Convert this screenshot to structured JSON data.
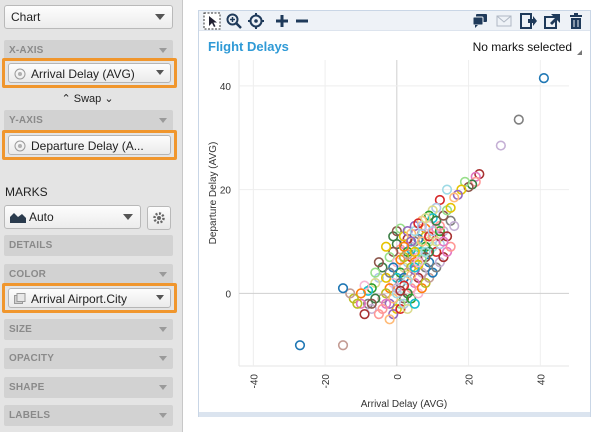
{
  "panel": {
    "chart_type": "Chart",
    "x_axis": {
      "label": "X-AXIS",
      "field": "Arrival Delay (AVG)"
    },
    "swap_label": "Swap",
    "y_axis": {
      "label": "Y-AXIS",
      "field": "Departure Delay (A..."
    },
    "marks_label": "MARKS",
    "marks_type": "Auto",
    "details_label": "DETAILS",
    "color": {
      "label": "COLOR",
      "field": "Arrival Airport.City"
    },
    "size_label": "SIZE",
    "opacity_label": "OPACITY",
    "shape_label": "SHAPE",
    "labels_label": "LABELS"
  },
  "viz": {
    "title": "Flight Delays",
    "marks_status": "No marks selected",
    "toolbar_icons": [
      "pointer-icon",
      "zoom-icon",
      "pan-icon",
      "add-icon",
      "remove-icon",
      "comment-icon",
      "email-icon",
      "export-icon",
      "share-icon",
      "delete-icon"
    ]
  },
  "colors": {
    "accent": "#2f9ad6",
    "highlight": "#f0962d",
    "palette": [
      "#1f77b4",
      "#ff7f0e",
      "#2ca02c",
      "#d62728",
      "#9467bd",
      "#8c564b",
      "#e377c2",
      "#7f7f7f",
      "#bcbd22",
      "#17becf",
      "#aec7e8",
      "#ffbb78",
      "#98df8a",
      "#ff9896",
      "#c5b0d5",
      "#c49c94",
      "#f7b6d2",
      "#dbdb8d",
      "#9edae5",
      "#e5c300",
      "#3a7d44",
      "#a83232"
    ]
  },
  "chart_data": {
    "type": "scatter",
    "title": "Flight Delays",
    "xlabel": "Arrival Delay (AVG)",
    "ylabel": "Departure Delay (AVG)",
    "xlim": [
      -44,
      48
    ],
    "ylim": [
      -14,
      45
    ],
    "x_ticks": [
      "-40",
      "-20",
      "0",
      "20",
      "40"
    ],
    "y_ticks": [
      "0",
      "20",
      "40"
    ],
    "x_tick_values": [
      -40,
      -20,
      0,
      20,
      40
    ],
    "y_tick_values": [
      0,
      20,
      40
    ],
    "grid": true,
    "points": [
      [
        41,
        41.5
      ],
      [
        34,
        33.5
      ],
      [
        29,
        28.5
      ],
      [
        23,
        23
      ],
      [
        22,
        22.5
      ],
      [
        22,
        21.5
      ],
      [
        21,
        21
      ],
      [
        20,
        20.5
      ],
      [
        19,
        21.5
      ],
      [
        18,
        20
      ],
      [
        17,
        19
      ],
      [
        16,
        18.5
      ],
      [
        14,
        20
      ],
      [
        12,
        18
      ],
      [
        11,
        16.5
      ],
      [
        10,
        16
      ],
      [
        9,
        15
      ],
      [
        10,
        14.5
      ],
      [
        9,
        13
      ],
      [
        8,
        12.5
      ],
      [
        8,
        11
      ],
      [
        7,
        11.5
      ],
      [
        6,
        10.5
      ],
      [
        5,
        10
      ],
      [
        4,
        9
      ],
      [
        3,
        10.5
      ],
      [
        2,
        9.5
      ],
      [
        1,
        8.5
      ],
      [
        0,
        9.5
      ],
      [
        -1,
        8
      ],
      [
        -2,
        7
      ],
      [
        -3,
        9
      ],
      [
        5,
        13
      ],
      [
        7,
        14
      ],
      [
        6,
        8
      ],
      [
        4,
        7
      ],
      [
        3,
        6
      ],
      [
        2,
        5
      ],
      [
        1,
        4
      ],
      [
        0,
        3
      ],
      [
        -1,
        2
      ],
      [
        -2,
        1
      ],
      [
        -3,
        0
      ],
      [
        -4,
        -1
      ],
      [
        9,
        6
      ],
      [
        8,
        5
      ],
      [
        7,
        4
      ],
      [
        6,
        3
      ],
      [
        5,
        2
      ],
      [
        4,
        1
      ],
      [
        3,
        0
      ],
      [
        2,
        -1
      ],
      [
        1,
        -2
      ],
      [
        0,
        -3
      ],
      [
        -1,
        -4
      ],
      [
        -2,
        -5
      ],
      [
        10,
        9
      ],
      [
        11,
        8
      ],
      [
        12,
        9.5
      ],
      [
        9,
        10
      ],
      [
        8,
        9
      ],
      [
        7,
        8
      ],
      [
        6,
        7
      ],
      [
        5,
        6
      ],
      [
        4,
        5
      ],
      [
        3,
        4
      ],
      [
        2,
        3
      ],
      [
        1,
        2
      ],
      [
        13,
        12
      ],
      [
        12,
        11
      ],
      [
        11,
        12.5
      ],
      [
        10,
        11
      ],
      [
        9,
        8
      ],
      [
        8,
        7
      ],
      [
        7,
        6.5
      ],
      [
        6,
        5.5
      ],
      [
        5,
        4.5
      ],
      [
        4,
        3.5
      ],
      [
        3,
        2.5
      ],
      [
        2,
        1.5
      ],
      [
        -5,
        3
      ],
      [
        -6,
        2
      ],
      [
        -7,
        1
      ],
      [
        -8,
        0.5
      ],
      [
        -9,
        1.5
      ],
      [
        -10,
        0
      ],
      [
        -12,
        -1
      ],
      [
        -13,
        0
      ],
      [
        -15,
        1
      ],
      [
        -8,
        -2
      ],
      [
        -7,
        -3
      ],
      [
        -9,
        -4
      ],
      [
        -10,
        -2
      ],
      [
        -5,
        -4
      ],
      [
        -4,
        5
      ],
      [
        -5,
        6
      ],
      [
        -6,
        4
      ],
      [
        -3,
        3
      ],
      [
        -2,
        -2
      ],
      [
        -1,
        -1
      ],
      [
        0,
        0
      ],
      [
        1,
        -3
      ],
      [
        2,
        -2
      ],
      [
        3,
        -3
      ],
      [
        4,
        -1
      ],
      [
        5,
        -2
      ],
      [
        6,
        0
      ],
      [
        7,
        1
      ],
      [
        8,
        2
      ],
      [
        9,
        3
      ],
      [
        10,
        4
      ],
      [
        11,
        5
      ],
      [
        12,
        6
      ],
      [
        13,
        7
      ],
      [
        14,
        8
      ],
      [
        15,
        9
      ],
      [
        -1,
        11
      ],
      [
        0,
        12
      ],
      [
        1,
        12.5
      ],
      [
        2,
        11
      ],
      [
        3,
        12
      ],
      [
        4,
        11.5
      ],
      [
        5,
        12
      ],
      [
        6,
        13.5
      ],
      [
        7,
        13
      ],
      [
        8,
        14.5
      ],
      [
        3,
        8
      ],
      [
        4,
        8.5
      ],
      [
        0,
        6
      ],
      [
        1,
        6.5
      ],
      [
        2,
        7
      ],
      [
        3,
        7.5
      ],
      [
        -1,
        5
      ],
      [
        -2,
        4
      ],
      [
        0,
        1
      ],
      [
        1,
        0.5
      ],
      [
        -3,
        -2
      ],
      [
        -4,
        -3
      ],
      [
        -6,
        -1
      ],
      [
        -7,
        -2
      ],
      [
        6,
        9
      ],
      [
        5,
        8
      ],
      [
        4,
        10
      ],
      [
        7,
        10
      ],
      [
        8,
        8
      ],
      [
        9,
        11
      ],
      [
        10,
        12
      ],
      [
        11,
        10
      ],
      [
        12,
        12
      ],
      [
        5,
        5
      ],
      [
        6,
        6
      ],
      [
        2,
        9
      ],
      [
        -11,
        -2
      ],
      [
        -15,
        -10
      ],
      [
        -27,
        -10
      ],
      [
        15,
        14
      ],
      [
        16,
        13
      ],
      [
        14,
        11
      ],
      [
        13,
        10
      ],
      [
        12,
        13
      ],
      [
        11,
        14
      ],
      [
        13,
        15
      ],
      [
        14,
        16
      ],
      [
        15,
        16.5
      ]
    ]
  }
}
